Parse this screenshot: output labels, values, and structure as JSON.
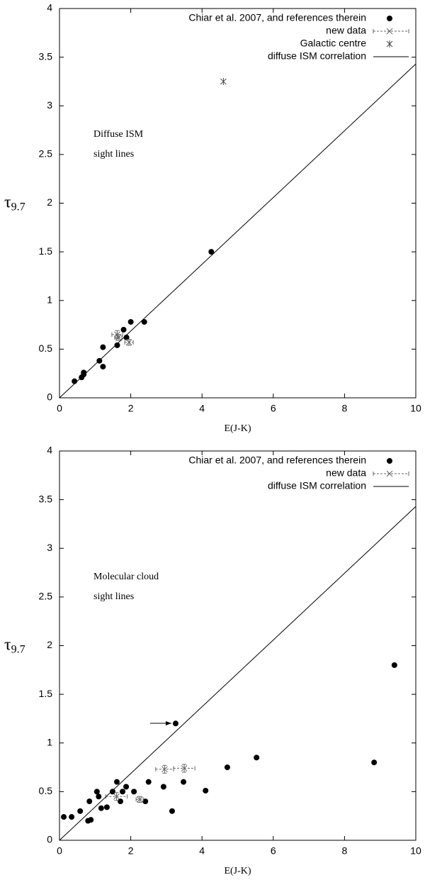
{
  "chart_data": [
    {
      "type": "scatter",
      "annotation": [
        "Diffuse ISM",
        "sight lines"
      ],
      "x_label": "E(J-K)",
      "y_label": {
        "symbol": "τ",
        "subscript": "9.7"
      },
      "xlim": [
        0,
        10
      ],
      "ylim": [
        0,
        4
      ],
      "xticks": [
        0,
        2,
        4,
        6,
        8,
        10
      ],
      "yticks": [
        0,
        0.5,
        1,
        1.5,
        2,
        2.5,
        3,
        3.5,
        4
      ],
      "legend": "upper right",
      "series": [
        {
          "name": "Chiar et al. 2007, and references therein",
          "marker": "circle",
          "color": "#000000",
          "x": [
            0.42,
            0.62,
            0.68,
            0.68,
            1.12,
            1.22,
            1.22,
            1.62,
            1.8,
            1.88,
            2.0,
            2.38,
            4.26
          ],
          "values": [
            0.17,
            0.21,
            0.24,
            0.26,
            0.38,
            0.32,
            0.52,
            0.54,
            0.7,
            0.62,
            0.78,
            0.78,
            1.5
          ]
        },
        {
          "name": "new data",
          "marker": "x",
          "color": "#666666",
          "x": [
            1.62,
            1.65,
            1.95
          ],
          "values": [
            0.65,
            0.62,
            0.57
          ],
          "xerr": [
            0.15,
            0.1,
            0.12
          ],
          "yerr": [
            0.04,
            0.03,
            0.03
          ]
        },
        {
          "name": "Galactic centre",
          "marker": "asterisk",
          "color": "#444444",
          "x": [
            4.6
          ],
          "values": [
            3.25
          ]
        },
        {
          "name": "diffuse ISM correlation",
          "marker": "line",
          "color": "#000000",
          "x": [
            0,
            10
          ],
          "values": [
            0,
            3.43
          ]
        }
      ]
    },
    {
      "type": "scatter",
      "annotation": [
        "Molecular cloud",
        "sight lines"
      ],
      "x_label": "E(J-K)",
      "y_label": {
        "symbol": "τ",
        "subscript": "9.7"
      },
      "xlim": [
        0,
        10
      ],
      "ylim": [
        0,
        4
      ],
      "xticks": [
        0,
        2,
        4,
        6,
        8,
        10
      ],
      "yticks": [
        0,
        0.5,
        1,
        1.5,
        2,
        2.5,
        3,
        3.5,
        4
      ],
      "legend": "upper right",
      "series": [
        {
          "name": "Chiar et al. 2007, and references therein",
          "marker": "circle",
          "color": "#000000",
          "x": [
            0.12,
            0.34,
            0.58,
            0.8,
            0.88,
            0.84,
            1.05,
            1.1,
            1.17,
            1.33,
            1.49,
            1.61,
            1.71,
            1.77,
            1.87,
            2.09,
            2.41,
            2.5,
            2.92,
            3.16,
            3.26,
            3.48,
            4.1,
            4.71,
            5.53,
            8.83,
            9.4
          ],
          "values": [
            0.24,
            0.24,
            0.3,
            0.2,
            0.21,
            0.4,
            0.5,
            0.45,
            0.33,
            0.34,
            0.5,
            0.6,
            0.4,
            0.5,
            0.55,
            0.5,
            0.4,
            0.6,
            0.55,
            0.3,
            1.2,
            0.6,
            0.51,
            0.75,
            0.85,
            0.8,
            1.8
          ]
        },
        {
          "name": "new data",
          "marker": "x",
          "color": "#666666",
          "x": [
            1.6,
            2.25,
            2.95,
            3.5
          ],
          "values": [
            0.45,
            0.42,
            0.73,
            0.74
          ],
          "xerr": [
            0.3,
            0.1,
            0.25,
            0.3
          ],
          "yerr": [
            0.04,
            0.03,
            0.04,
            0.04
          ]
        },
        {
          "name": "diffuse ISM correlation",
          "marker": "line",
          "color": "#000000",
          "x": [
            0,
            10
          ],
          "values": [
            0,
            3.43
          ]
        }
      ]
    }
  ]
}
